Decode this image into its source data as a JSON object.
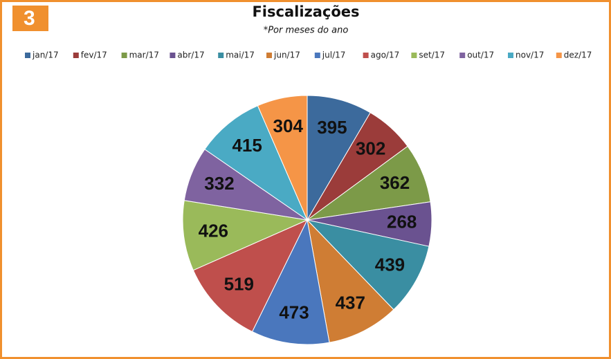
{
  "badge": "3",
  "chart_data": {
    "type": "pie",
    "title": "Fiscalizações",
    "subtitle": "*Por meses do ano",
    "categories": [
      "jan/17",
      "fev/17",
      "mar/17",
      "abr/17",
      "mai/17",
      "jun/17",
      "jul/17",
      "ago/17",
      "set/17",
      "out/17",
      "nov/17",
      "dez/17"
    ],
    "values": [
      395,
      302,
      362,
      268,
      439,
      437,
      473,
      519,
      426,
      332,
      415,
      304
    ],
    "colors": [
      "#3c6a9c",
      "#9b3c3a",
      "#7c9a48",
      "#6a5290",
      "#3a8ea2",
      "#cf7d34",
      "#4a77bd",
      "#bf4f4c",
      "#9aba5a",
      "#7f63a0",
      "#4aaac4",
      "#f59547"
    ],
    "legend": "top"
  }
}
